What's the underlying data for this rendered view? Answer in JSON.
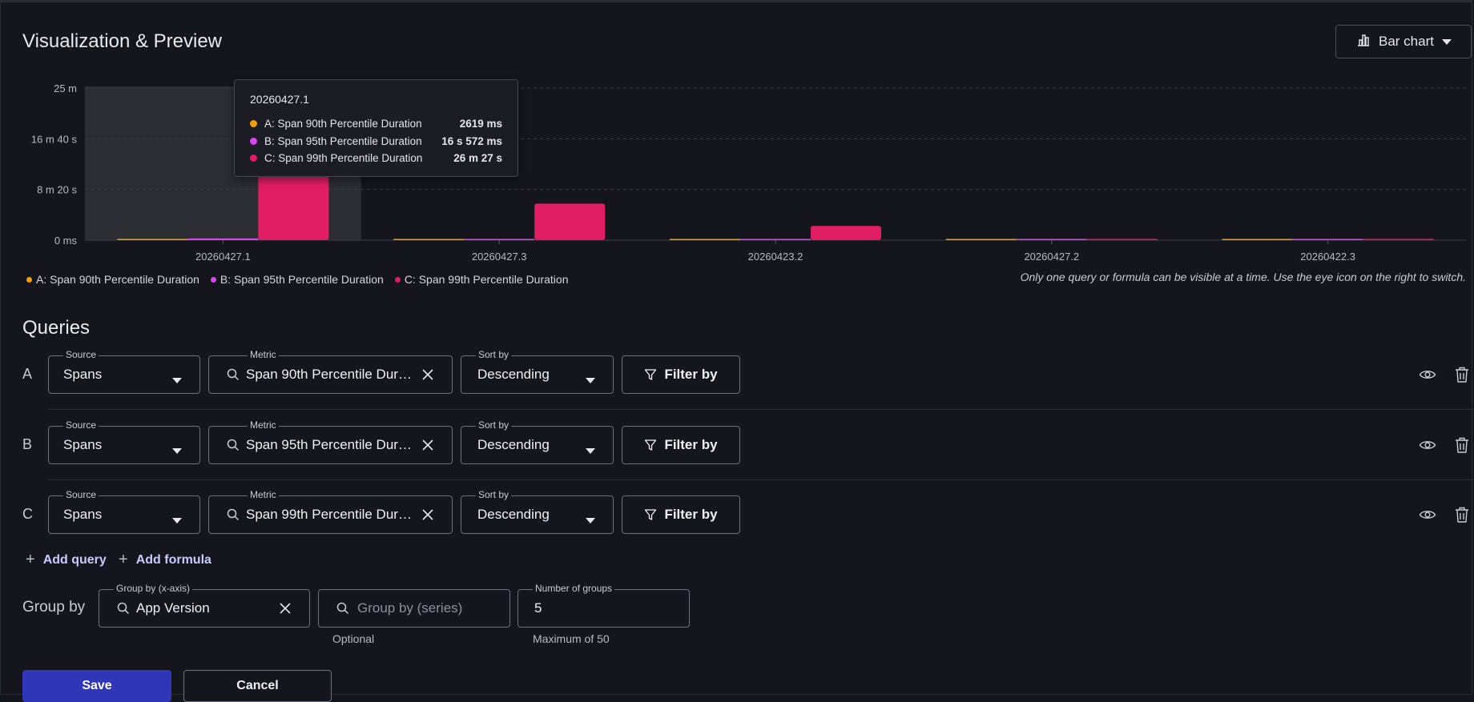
{
  "header": {
    "title": "Visualization & Preview",
    "chart_type_label": "Bar chart"
  },
  "chart_data": {
    "type": "bar",
    "categories": [
      "20260427.1",
      "20260427.3",
      "20260423.2",
      "20260427.2",
      "20260422.3"
    ],
    "y_unit": "seconds",
    "ylim": [
      0,
      1500
    ],
    "y_ticks": [
      {
        "value": 0,
        "label": "0 ms"
      },
      {
        "value": 500,
        "label": "8 m 20 s"
      },
      {
        "value": 1000,
        "label": "16 m 40 s"
      },
      {
        "value": 1500,
        "label": "25 m"
      }
    ],
    "series": [
      {
        "name": "A: Span 90th Percentile Duration",
        "color": "#f59e0b",
        "values": [
          2.619,
          0.3,
          0.2,
          0.1,
          0.05
        ]
      },
      {
        "name": "B: Span 95th Percentile Duration",
        "color": "#d946ef",
        "values": [
          16.572,
          1.5,
          0.8,
          0.3,
          0.2
        ]
      },
      {
        "name": "C: Span 99th Percentile Duration",
        "color": "#e11d63",
        "values": [
          1587,
          360,
          140,
          3,
          2
        ]
      }
    ],
    "grid": true,
    "legend_position": "bottom-left",
    "highlighted_category": "20260427.1"
  },
  "tooltip": {
    "title": "20260427.1",
    "rows": [
      {
        "label": "A: Span 90th Percentile Duration",
        "value": "2619 ms",
        "color": "#f59e0b"
      },
      {
        "label": "B: Span 95th Percentile Duration",
        "value": "16 s 572 ms",
        "color": "#d946ef"
      },
      {
        "label": "C: Span 99th Percentile Duration",
        "value": "26 m 27 s",
        "color": "#e11d63"
      }
    ]
  },
  "hint": "Only one query or formula can be visible at a time. Use the eye icon on the right to switch.",
  "queries_section": {
    "title": "Queries",
    "source_label": "Source",
    "metric_label": "Metric",
    "sort_label": "Sort by",
    "filter_label": "Filter by",
    "rows": [
      {
        "letter": "A",
        "source": "Spans",
        "metric": "Span 90th Percentile Durati...",
        "sort": "Descending"
      },
      {
        "letter": "B",
        "source": "Spans",
        "metric": "Span 95th Percentile Durati...",
        "sort": "Descending"
      },
      {
        "letter": "C",
        "source": "Spans",
        "metric": "Span 99th Percentile Durati...",
        "sort": "Descending"
      }
    ],
    "add_query": "Add query",
    "add_formula": "Add formula"
  },
  "group_by": {
    "label": "Group by",
    "x_axis_label": "Group by (x-axis)",
    "x_axis_value": "App Version",
    "series_placeholder": "Group by (series)",
    "series_helper": "Optional",
    "num_groups_label": "Number of groups",
    "num_groups_value": "5",
    "num_groups_helper": "Maximum of 50"
  },
  "actions": {
    "save": "Save",
    "cancel": "Cancel"
  }
}
